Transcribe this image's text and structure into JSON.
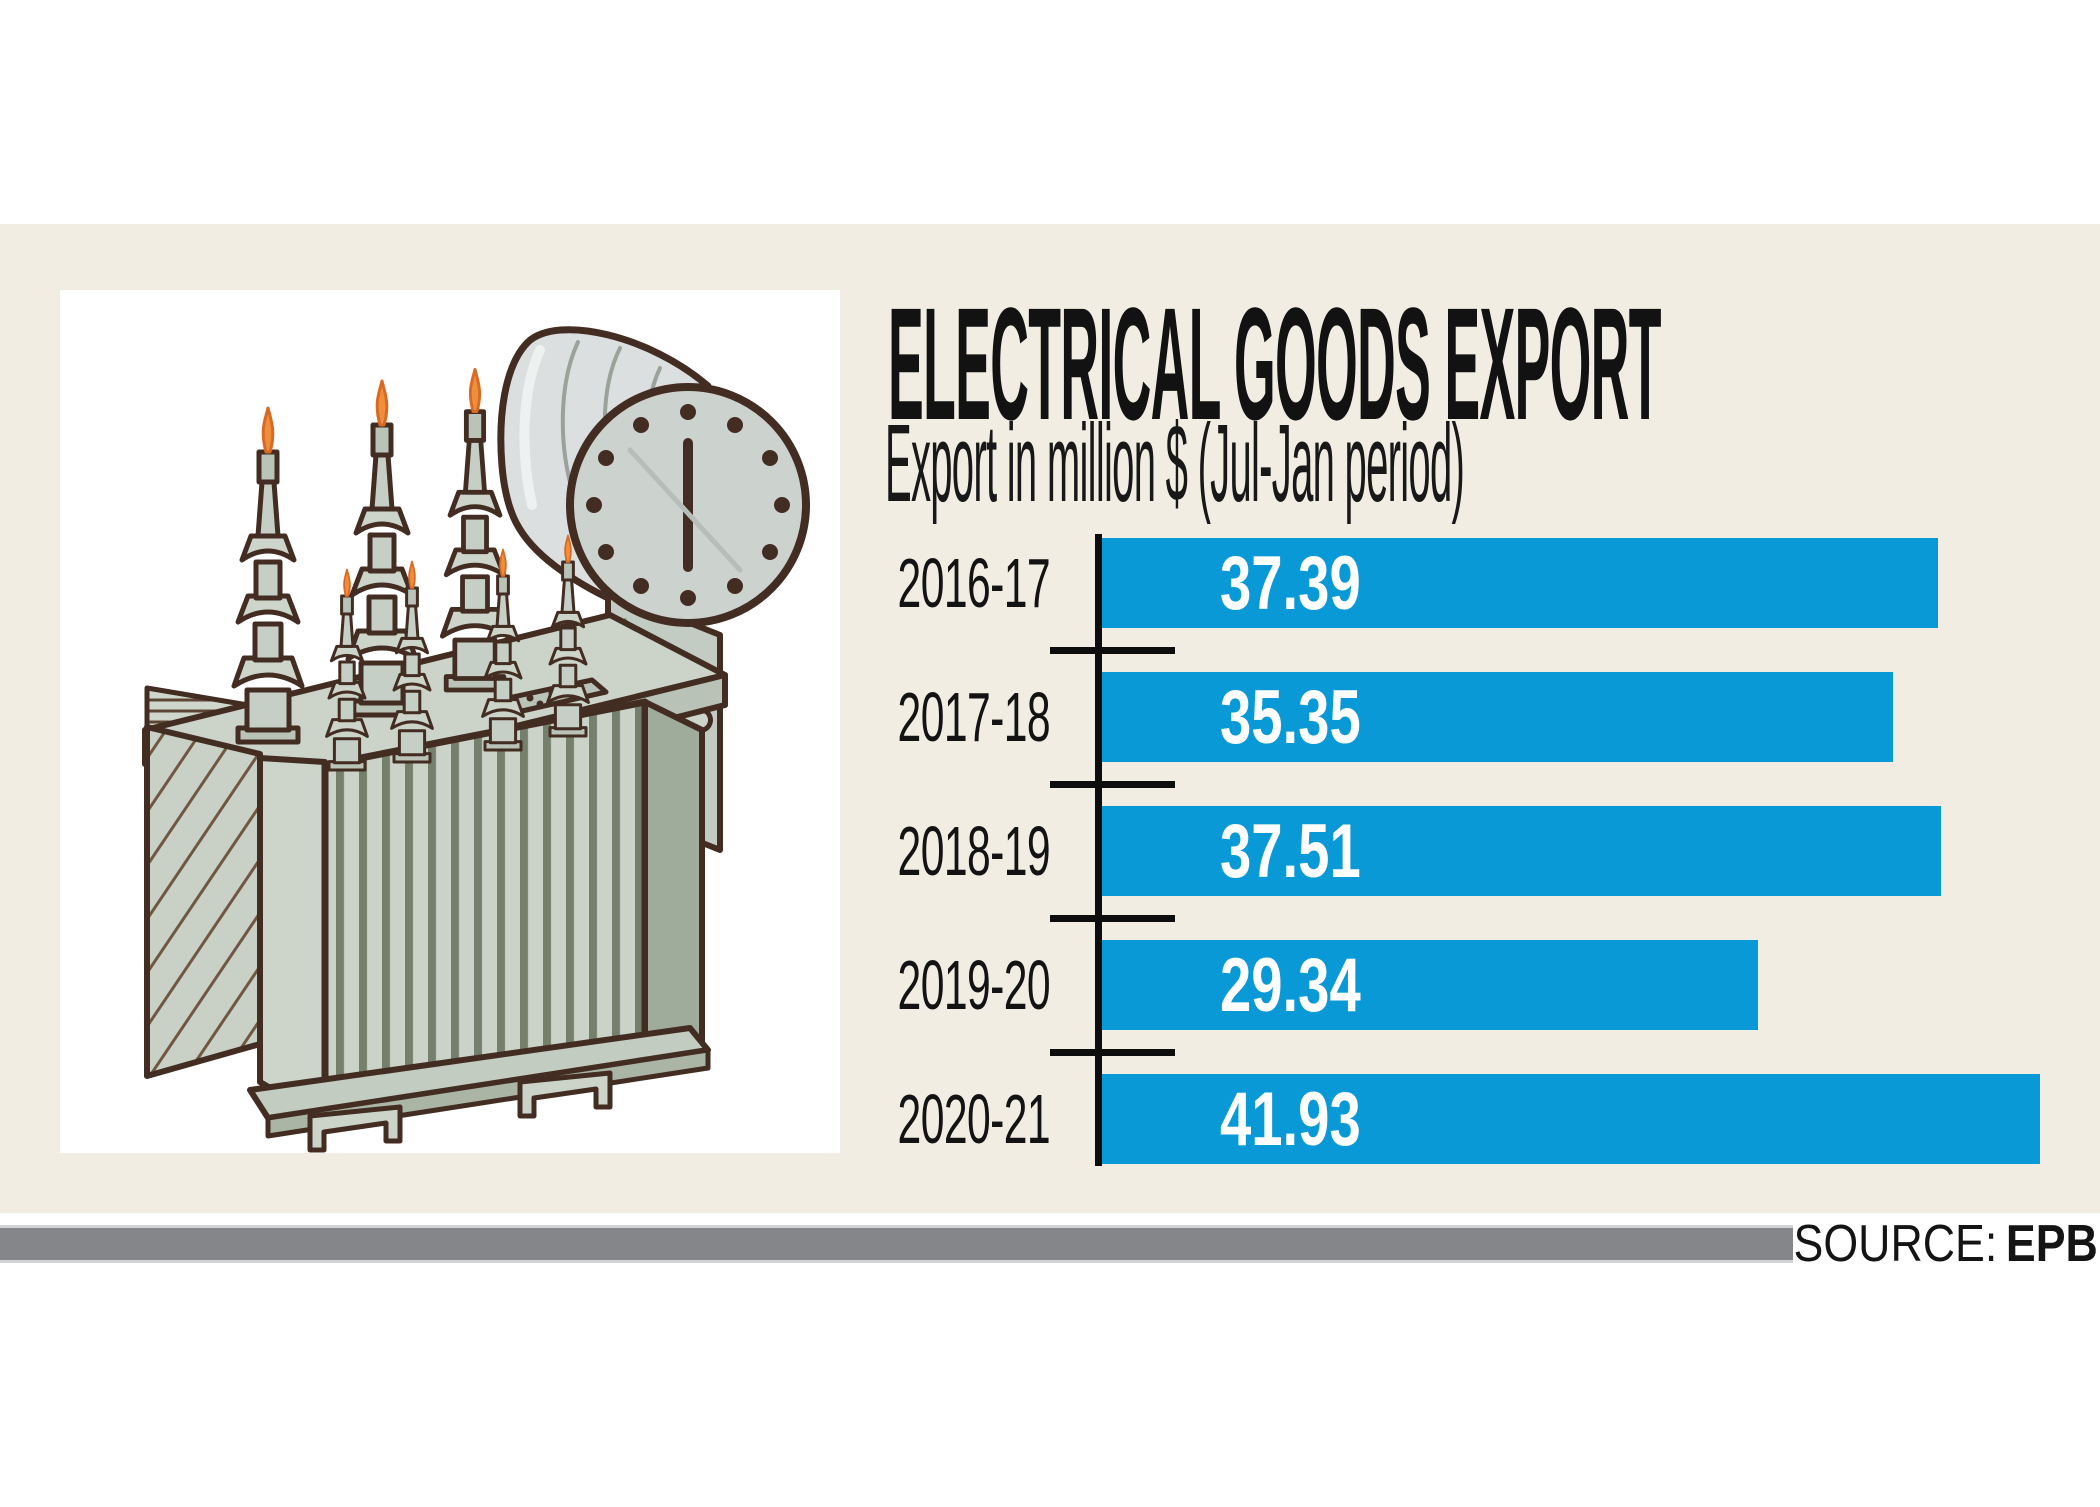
{
  "page": {
    "background": "#ffffff",
    "panel_background": "#f1ede3"
  },
  "header": {
    "title": "ELECTRICAL GOODS EXPORT",
    "subtitle": "Export in million $ (Jul-Jan period)"
  },
  "chart_data": {
    "type": "bar",
    "orientation": "horizontal",
    "title": "ELECTRICAL GOODS EXPORT",
    "subtitle": "Export in million $ (Jul-Jan period)",
    "categories": [
      "2016-17",
      "2017-18",
      "2018-19",
      "2019-20",
      "2020-21"
    ],
    "values": [
      37.39,
      35.35,
      37.51,
      29.34,
      41.93
    ],
    "value_labels": [
      "37.39",
      "35.35",
      "37.51",
      "29.34",
      "41.93"
    ],
    "xlabel": "",
    "ylabel": "",
    "xlim": [
      0,
      41.93
    ],
    "grid": false,
    "legend": false,
    "bar_color": "#0999d6",
    "value_label_color": "#ffffff",
    "axis_color": "#0d0d0d",
    "label_color": "#131313"
  },
  "footer": {
    "source_label": "SOURCE:",
    "source_value": "EPB",
    "bar_color": "#85868a"
  },
  "illustration": {
    "name": "power-transformer-drawing"
  }
}
